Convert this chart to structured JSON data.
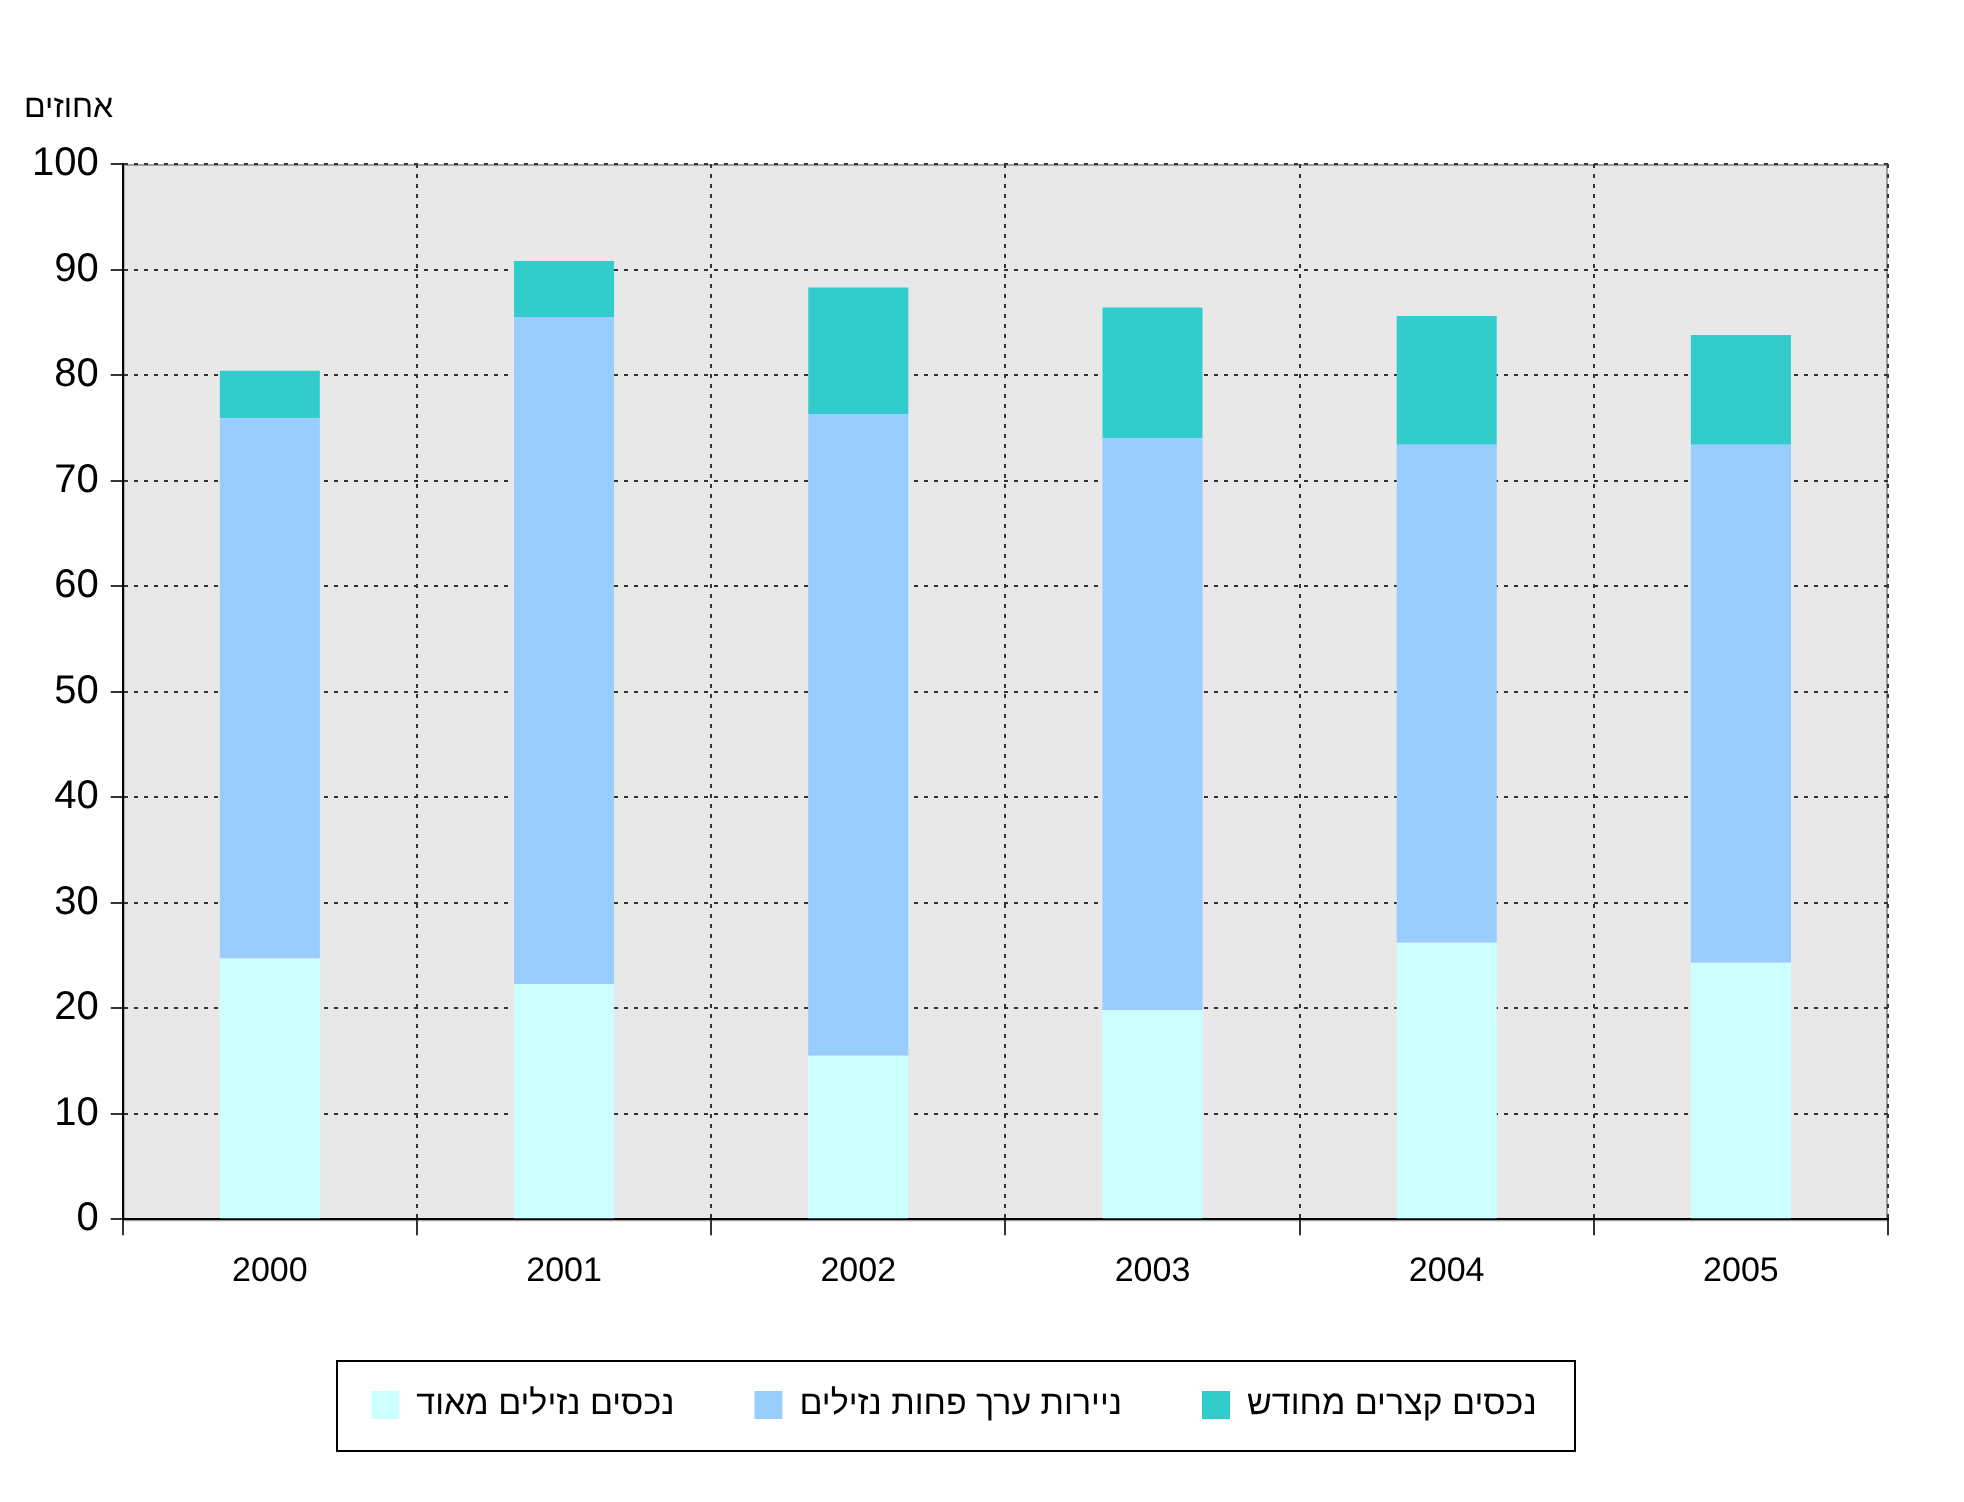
{
  "chart_data": {
    "type": "bar",
    "stacked": true,
    "ylabel": "אחוזים",
    "categories": [
      "2000",
      "2001",
      "2002",
      "2003",
      "2004",
      "2005"
    ],
    "series": [
      {
        "name": "נכסים נזילים מאוד",
        "color": "#ccffff",
        "values": [
          24.7,
          22.3,
          15.5,
          19.8,
          26.2,
          24.3
        ]
      },
      {
        "name": "ניירות ערך פחות נזילים",
        "color": "#99ccff",
        "values": [
          51.2,
          63.2,
          60.8,
          54.2,
          47.2,
          49.1
        ]
      },
      {
        "name": "נכסים קצרים מחודש",
        "color": "#33cccc",
        "values": [
          4.5,
          5.3,
          12.0,
          12.4,
          12.2,
          10.4
        ]
      }
    ],
    "ylim": [
      0,
      100
    ],
    "yticks": [
      0,
      10,
      20,
      30,
      40,
      50,
      60,
      70,
      80,
      90,
      100
    ],
    "grid": true,
    "legend": "bottom"
  }
}
